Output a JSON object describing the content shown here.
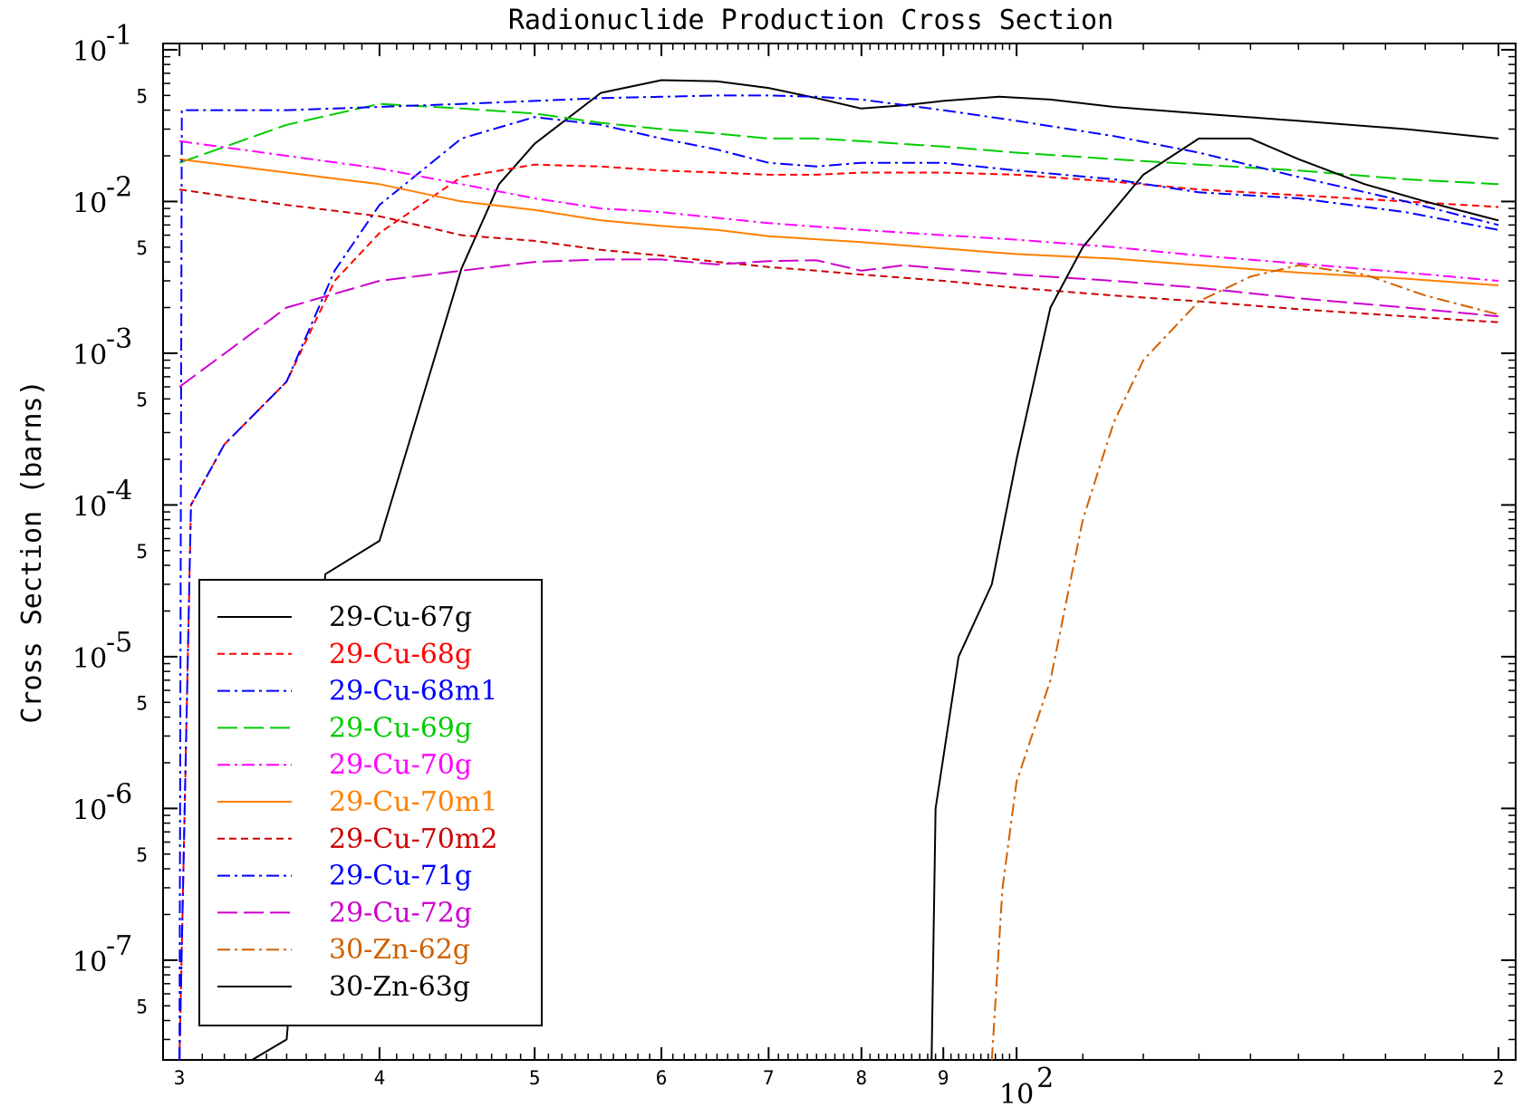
{
  "chart_data": {
    "type": "line",
    "title": "Radionuclide Production Cross Section",
    "xlabel": "",
    "ylabel": "Cross Section (barns)",
    "xscale": "log",
    "yscale": "log",
    "xlim": [
      29.3,
      205
    ],
    "ylim": [
      2.2e-08,
      0.11
    ],
    "legend_position": "bottom-left",
    "grid": false,
    "x_ticks": [
      {
        "value": 30,
        "label": "3"
      },
      {
        "value": 40,
        "label": "4"
      },
      {
        "value": 50,
        "label": "5"
      },
      {
        "value": 60,
        "label": "6"
      },
      {
        "value": 70,
        "label": "7"
      },
      {
        "value": 80,
        "label": "8"
      },
      {
        "value": 90,
        "label": "9"
      },
      {
        "value": 100,
        "label": "10",
        "exponent": "2"
      },
      {
        "value": 200,
        "label": "2"
      }
    ],
    "y_ticks_major": [
      {
        "value": 0.1,
        "exponent": "-1"
      },
      {
        "value": 0.01,
        "exponent": "-2"
      },
      {
        "value": 0.001,
        "exponent": "-3"
      },
      {
        "value": 0.0001,
        "exponent": "-4"
      },
      {
        "value": 1e-05,
        "exponent": "-5"
      },
      {
        "value": 1e-06,
        "exponent": "-6"
      },
      {
        "value": 1e-07,
        "exponent": "-7"
      }
    ],
    "y_tick_base": "10",
    "y_ticks_minor": [
      {
        "value": 0.05,
        "label": "5"
      },
      {
        "value": 0.005,
        "label": "5"
      },
      {
        "value": 0.0005,
        "label": "5"
      },
      {
        "value": 5e-05,
        "label": "5"
      },
      {
        "value": 5e-06,
        "label": "5"
      },
      {
        "value": 5e-07,
        "label": "5"
      },
      {
        "value": 5e-08,
        "label": "5"
      }
    ],
    "series": [
      {
        "name": "29-Cu-67g",
        "color": "#000000",
        "dash": "solid",
        "x": [
          33.3,
          35,
          37,
          40,
          45,
          47.5,
          50,
          55,
          60,
          65,
          70,
          75,
          80,
          85,
          90,
          97.5,
          105,
          115,
          130,
          150,
          175,
          200
        ],
        "y": [
          2.2e-08,
          3e-08,
          3.5e-05,
          5.8e-05,
          0.0036,
          0.013,
          0.024,
          0.052,
          0.063,
          0.062,
          0.056,
          0.048,
          0.041,
          0.043,
          0.046,
          0.049,
          0.047,
          0.042,
          0.038,
          0.034,
          0.03,
          0.026
        ]
      },
      {
        "name": "29-Cu-68g",
        "color": "#ff0000",
        "dash": "8,5",
        "x": [
          30,
          30.5,
          32,
          35,
          37.5,
          40,
          45,
          50,
          55,
          60,
          65,
          70,
          75,
          80,
          90,
          100,
          115,
          130,
          150,
          175,
          200
        ],
        "y": [
          2.2e-08,
          0.0001,
          0.00025,
          0.00065,
          0.003,
          0.0062,
          0.0145,
          0.0175,
          0.017,
          0.016,
          0.0155,
          0.015,
          0.015,
          0.0155,
          0.0155,
          0.015,
          0.0135,
          0.012,
          0.011,
          0.01,
          0.0092
        ]
      },
      {
        "name": "29-Cu-68m1",
        "color": "#0000ff",
        "dash": "14,5,3,5",
        "x": [
          30,
          30.5,
          32,
          35,
          37.5,
          40,
          45,
          50,
          55,
          60,
          65,
          70,
          75,
          80,
          90,
          100,
          115,
          130,
          150,
          175,
          200
        ],
        "y": [
          2.2e-08,
          0.0001,
          0.00025,
          0.00065,
          0.0035,
          0.0095,
          0.026,
          0.036,
          0.032,
          0.026,
          0.022,
          0.018,
          0.017,
          0.018,
          0.018,
          0.016,
          0.014,
          0.0115,
          0.0105,
          0.0085,
          0.0065
        ]
      },
      {
        "name": "29-Cu-69g",
        "color": "#00cc00",
        "dash": "22,7",
        "x": [
          30,
          35,
          40,
          45,
          50,
          55,
          60,
          65,
          70,
          75,
          80,
          90,
          100,
          115,
          130,
          150,
          175,
          200
        ],
        "y": [
          0.018,
          0.032,
          0.044,
          0.041,
          0.038,
          0.033,
          0.03,
          0.028,
          0.026,
          0.026,
          0.025,
          0.023,
          0.021,
          0.019,
          0.0175,
          0.016,
          0.014,
          0.013
        ]
      },
      {
        "name": "29-Cu-70g",
        "color": "#ff00ff",
        "dash": "14,5,3,5",
        "x": [
          30,
          35,
          40,
          45,
          50,
          55,
          60,
          65,
          70,
          80,
          90,
          100,
          115,
          130,
          150,
          175,
          200
        ],
        "y": [
          0.025,
          0.02,
          0.0165,
          0.013,
          0.0105,
          0.009,
          0.0085,
          0.0078,
          0.0072,
          0.0065,
          0.006,
          0.0056,
          0.005,
          0.0044,
          0.0039,
          0.0034,
          0.003
        ]
      },
      {
        "name": "29-Cu-70m1",
        "color": "#ff8000",
        "dash": "solid",
        "x": [
          30,
          35,
          40,
          45,
          50,
          55,
          60,
          65,
          70,
          80,
          90,
          100,
          115,
          130,
          150,
          175,
          200
        ],
        "y": [
          0.019,
          0.0155,
          0.013,
          0.01,
          0.0088,
          0.0075,
          0.0069,
          0.0065,
          0.0059,
          0.0054,
          0.0049,
          0.0045,
          0.0042,
          0.0038,
          0.0034,
          0.0031,
          0.0028
        ]
      },
      {
        "name": "29-Cu-70m2",
        "color": "#cc0000",
        "dash": "8,5",
        "x": [
          30,
          35,
          40,
          45,
          50,
          55,
          60,
          65,
          70,
          75,
          80,
          90,
          100,
          115,
          130,
          150,
          175,
          200
        ],
        "y": [
          0.012,
          0.0095,
          0.008,
          0.006,
          0.0055,
          0.0048,
          0.0044,
          0.004,
          0.0037,
          0.0035,
          0.0033,
          0.003,
          0.0027,
          0.0024,
          0.0022,
          0.00195,
          0.00175,
          0.0016
        ]
      },
      {
        "name": "29-Cu-71g",
        "color": "#0000ff",
        "dash": "14,5,3,5",
        "x": [
          30,
          30.1,
          35,
          40,
          45,
          50,
          55,
          60,
          65,
          70,
          75,
          80,
          90,
          100,
          115,
          130,
          150,
          175,
          200
        ],
        "y": [
          2.2e-08,
          0.04,
          0.04,
          0.042,
          0.044,
          0.046,
          0.048,
          0.049,
          0.05,
          0.05,
          0.049,
          0.047,
          0.04,
          0.034,
          0.027,
          0.021,
          0.0145,
          0.01,
          0.007
        ]
      },
      {
        "name": "29-Cu-72g",
        "color": "#cc00cc",
        "dash": "22,7",
        "x": [
          30,
          35,
          40,
          45,
          50,
          55,
          60,
          65,
          70,
          75,
          80,
          85,
          90,
          100,
          115,
          130,
          150,
          175,
          200
        ],
        "y": [
          0.0006,
          0.002,
          0.003,
          0.0035,
          0.004,
          0.00415,
          0.00415,
          0.00385,
          0.00405,
          0.0041,
          0.0035,
          0.0038,
          0.0036,
          0.0033,
          0.003,
          0.0027,
          0.0023,
          0.002,
          0.00175
        ]
      },
      {
        "name": "30-Zn-62g",
        "color": "#d06000",
        "dash": "14,5,3,5",
        "x": [
          96.5,
          98,
          100,
          105,
          110,
          115,
          120,
          130,
          140,
          150,
          165,
          180,
          200
        ],
        "y": [
          2.2e-08,
          3e-07,
          1.5e-06,
          7e-06,
          8e-05,
          0.00035,
          0.0009,
          0.0022,
          0.0032,
          0.0038,
          0.0033,
          0.0024,
          0.0018
        ]
      },
      {
        "name": "30-Zn-63g",
        "color": "#000000",
        "dash": "solid",
        "x": [
          88.5,
          89,
          92,
          96.5,
          100,
          105,
          110,
          120,
          130,
          140,
          150,
          165,
          180,
          200
        ],
        "y": [
          2.2e-08,
          1e-06,
          1e-05,
          3e-05,
          0.0002,
          0.002,
          0.005,
          0.015,
          0.026,
          0.026,
          0.019,
          0.013,
          0.01,
          0.0075
        ]
      }
    ]
  }
}
